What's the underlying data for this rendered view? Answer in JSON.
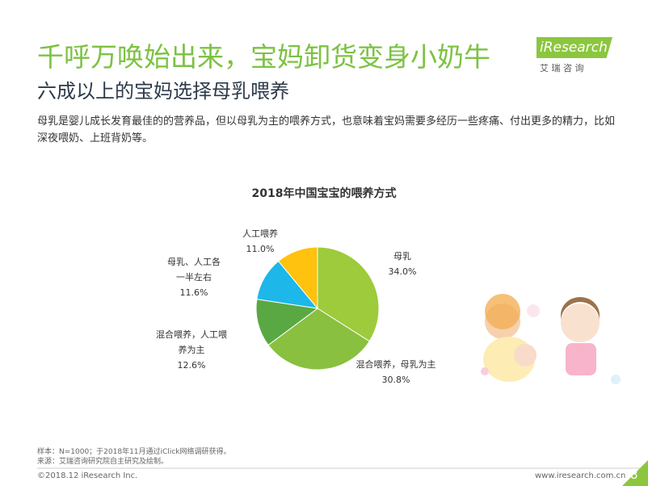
{
  "header": {
    "title": "千呼万唤始出来，宝妈卸货变身小奶牛",
    "subtitle": "六成以上的宝妈选择母乳喂养",
    "logo": "iResearch",
    "logo_cn": "艾 瑞 咨 询"
  },
  "body": "母乳是婴儿成长发育最佳的的营养品，但以母乳为主的喂养方式，也意味着宝妈需要多经历一些疼痛、付出更多的精力，比如深夜喂奶、上班背奶等。",
  "chart_data": {
    "type": "pie",
    "title": "2018年中国宝宝的喂养方式",
    "categories": [
      "母乳",
      "混合喂养，母乳为主",
      "混合喂养，人工喂养为主",
      "母乳、人工各一半左右",
      "人工喂养"
    ],
    "values": [
      34.0,
      30.8,
      12.6,
      11.6,
      11.0
    ],
    "value_labels": [
      "34.0%",
      "30.8%",
      "12.6%",
      "11.6%",
      "11.0%"
    ],
    "colors": [
      "#9dcb3c",
      "#8ac040",
      "#5aa844",
      "#1db7e9",
      "#ffc20e"
    ]
  },
  "notes": [
    "样本：N=1000；于2018年11月通过iClick网络调研获得。",
    "来源：艾瑞咨询研究院自主研究及绘制。"
  ],
  "footer": {
    "copyright": "©2018.12 iResearch Inc.",
    "url": "www.iresearch.com.cn",
    "page": "8"
  }
}
